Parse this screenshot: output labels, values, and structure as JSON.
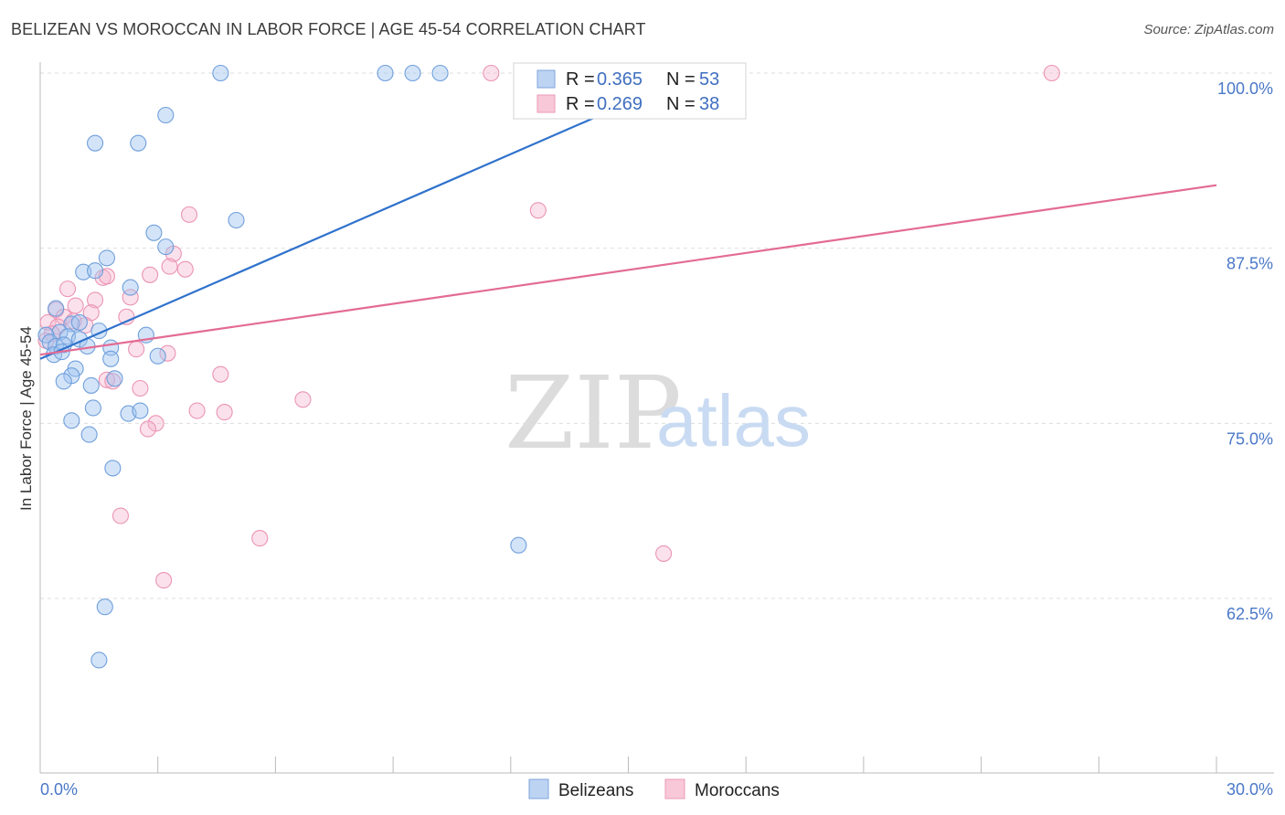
{
  "header": {
    "title": "BELIZEAN VS MOROCCAN IN LABOR FORCE | AGE 45-54 CORRELATION CHART",
    "source": "Source: ZipAtlas.com"
  },
  "watermark": {
    "zip": "ZIP",
    "atlas": "atlas"
  },
  "legend": {
    "belizeans": {
      "r_label": "R =",
      "r_value": "0.365",
      "n_label": "N =",
      "n_value": "53"
    },
    "moroccans": {
      "r_label": "R =",
      "r_value": "0.269",
      "n_label": "N =",
      "n_value": "38"
    }
  },
  "chart_data": {
    "type": "scatter",
    "title": "BELIZEAN VS MOROCCAN IN LABOR FORCE | AGE 45-54 CORRELATION CHART",
    "xlabel": "",
    "ylabel": "In Labor Force | Age 45-54",
    "xlim": [
      0,
      30
    ],
    "ylim": [
      52,
      101
    ],
    "x_tick_labels": [
      "0.0%",
      "30.0%"
    ],
    "y_ticks": [
      {
        "value": 100,
        "label": "100.0%"
      },
      {
        "value": 87.5,
        "label": "87.5%"
      },
      {
        "value": 75,
        "label": "75.0%"
      },
      {
        "value": 62.5,
        "label": "62.5%"
      }
    ],
    "grid": "horizontal dashed",
    "legend_position": "top-center",
    "colors": {
      "belizeans": "#4a86d8",
      "moroccans": "#e8709a"
    },
    "series": [
      {
        "name": "Belizeans",
        "r": 0.365,
        "n": 53,
        "trend": {
          "x": [
            0,
            15.6
          ],
          "y": [
            79.6,
            98.6
          ]
        },
        "points": [
          {
            "x": 4.6,
            "y": 100.0
          },
          {
            "x": 8.8,
            "y": 100.0
          },
          {
            "x": 9.5,
            "y": 100.0
          },
          {
            "x": 10.2,
            "y": 100.0
          },
          {
            "x": 3.2,
            "y": 97.0
          },
          {
            "x": 1.4,
            "y": 95.0
          },
          {
            "x": 2.5,
            "y": 95.0
          },
          {
            "x": 5.0,
            "y": 89.5
          },
          {
            "x": 2.9,
            "y": 88.6
          },
          {
            "x": 3.2,
            "y": 87.6
          },
          {
            "x": 1.7,
            "y": 86.8
          },
          {
            "x": 1.1,
            "y": 85.8
          },
          {
            "x": 1.4,
            "y": 85.9
          },
          {
            "x": 2.3,
            "y": 84.7
          },
          {
            "x": 0.4,
            "y": 83.2
          },
          {
            "x": 0.8,
            "y": 82.1
          },
          {
            "x": 1.0,
            "y": 82.2
          },
          {
            "x": 1.5,
            "y": 81.6
          },
          {
            "x": 2.7,
            "y": 81.3
          },
          {
            "x": 0.5,
            "y": 81.5
          },
          {
            "x": 0.7,
            "y": 81.2
          },
          {
            "x": 1.0,
            "y": 81.0
          },
          {
            "x": 0.15,
            "y": 81.3
          },
          {
            "x": 0.25,
            "y": 80.8
          },
          {
            "x": 0.4,
            "y": 80.5
          },
          {
            "x": 0.6,
            "y": 80.6
          },
          {
            "x": 1.2,
            "y": 80.5
          },
          {
            "x": 1.8,
            "y": 80.4
          },
          {
            "x": 0.35,
            "y": 79.9
          },
          {
            "x": 0.55,
            "y": 80.1
          },
          {
            "x": 3.0,
            "y": 79.8
          },
          {
            "x": 1.8,
            "y": 79.6
          },
          {
            "x": 0.9,
            "y": 78.9
          },
          {
            "x": 0.8,
            "y": 78.4
          },
          {
            "x": 0.6,
            "y": 78.0
          },
          {
            "x": 1.3,
            "y": 77.7
          },
          {
            "x": 1.9,
            "y": 78.2
          },
          {
            "x": 1.35,
            "y": 76.1
          },
          {
            "x": 2.25,
            "y": 75.7
          },
          {
            "x": 2.55,
            "y": 75.9
          },
          {
            "x": 0.8,
            "y": 75.2
          },
          {
            "x": 1.25,
            "y": 74.2
          },
          {
            "x": 1.85,
            "y": 71.8
          },
          {
            "x": 12.2,
            "y": 66.3
          },
          {
            "x": 1.65,
            "y": 61.9
          },
          {
            "x": 1.5,
            "y": 58.1
          }
        ]
      },
      {
        "name": "Moroccans",
        "r": 0.269,
        "n": 38,
        "trend": {
          "x": [
            0,
            30
          ],
          "y": [
            79.9,
            92.0
          ]
        },
        "points": [
          {
            "x": 11.5,
            "y": 100.0
          },
          {
            "x": 25.8,
            "y": 100.0
          },
          {
            "x": 3.8,
            "y": 89.9
          },
          {
            "x": 12.7,
            "y": 90.2
          },
          {
            "x": 3.4,
            "y": 87.1
          },
          {
            "x": 3.3,
            "y": 86.2
          },
          {
            "x": 3.7,
            "y": 86.0
          },
          {
            "x": 1.6,
            "y": 85.4
          },
          {
            "x": 1.7,
            "y": 85.5
          },
          {
            "x": 2.8,
            "y": 85.6
          },
          {
            "x": 0.7,
            "y": 84.6
          },
          {
            "x": 2.3,
            "y": 84.0
          },
          {
            "x": 1.4,
            "y": 83.8
          },
          {
            "x": 0.9,
            "y": 83.4
          },
          {
            "x": 0.4,
            "y": 83.1
          },
          {
            "x": 0.6,
            "y": 82.6
          },
          {
            "x": 1.3,
            "y": 82.9
          },
          {
            "x": 2.2,
            "y": 82.6
          },
          {
            "x": 0.85,
            "y": 82.3
          },
          {
            "x": 1.15,
            "y": 82.0
          },
          {
            "x": 0.2,
            "y": 82.2
          },
          {
            "x": 0.45,
            "y": 81.9
          },
          {
            "x": 0.3,
            "y": 81.4
          },
          {
            "x": 0.15,
            "y": 80.9
          },
          {
            "x": 2.45,
            "y": 80.3
          },
          {
            "x": 3.25,
            "y": 80.0
          },
          {
            "x": 4.6,
            "y": 78.5
          },
          {
            "x": 1.7,
            "y": 78.1
          },
          {
            "x": 1.85,
            "y": 78.0
          },
          {
            "x": 2.55,
            "y": 77.5
          },
          {
            "x": 6.7,
            "y": 76.7
          },
          {
            "x": 4.0,
            "y": 75.9
          },
          {
            "x": 4.7,
            "y": 75.8
          },
          {
            "x": 2.95,
            "y": 75.0
          },
          {
            "x": 2.75,
            "y": 74.6
          },
          {
            "x": 2.05,
            "y": 68.4
          },
          {
            "x": 5.6,
            "y": 66.8
          },
          {
            "x": 15.9,
            "y": 65.7
          },
          {
            "x": 3.15,
            "y": 63.8
          }
        ]
      }
    ],
    "series_legend": [
      "Belizeans",
      "Moroccans"
    ]
  }
}
